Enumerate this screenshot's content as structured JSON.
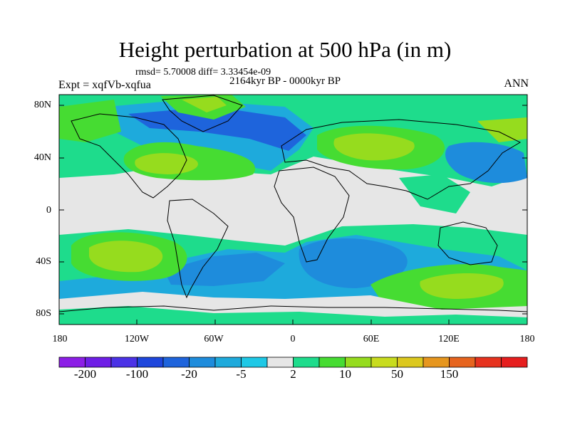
{
  "title": "Height perturbation at 500 hPa (in m)",
  "stats": "rmsd= 5.70008 diff= 3.33454e-09",
  "period": "2164kyr BP - 0000kyr BP",
  "experiment": "Expt = xqfVb-xqfua",
  "season": "ANN",
  "lat_ticks": [
    "80N",
    "40N",
    "0",
    "40S",
    "80S"
  ],
  "lon_ticks": [
    "180",
    "120W",
    "60W",
    "0",
    "60E",
    "120E",
    "180"
  ],
  "colorbar": {
    "colors": [
      "#8c1ee6",
      "#6e1ee6",
      "#4b32e6",
      "#1e46dc",
      "#1e64dc",
      "#1e8cdc",
      "#1eaadc",
      "#1ec8e6",
      "#e6e6e6",
      "#1edc8c",
      "#46dc32",
      "#96dc1e",
      "#c8dc1e",
      "#dcc81e",
      "#e6961e",
      "#e6641e",
      "#e6321e",
      "#e61e1e"
    ],
    "labels": [
      "-200",
      "-100",
      "-20",
      "-5",
      "2",
      "10",
      "50",
      "150"
    ]
  }
}
